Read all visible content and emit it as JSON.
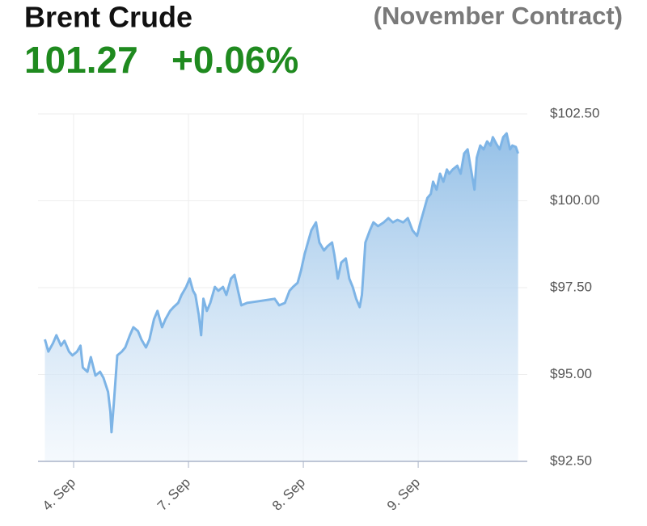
{
  "chart_data": {
    "type": "area",
    "title": "Brent Crude",
    "subtitle": "(November Contract)",
    "price": "101.27",
    "change": "+0.06%",
    "color": "#7db4e6",
    "grid": true,
    "xlim": [
      -0.31,
      3.95
    ],
    "xticks": [
      {
        "value": 0,
        "label": "4. Sep"
      },
      {
        "value": 1,
        "label": "7. Sep"
      },
      {
        "value": 2,
        "label": "8. Sep"
      },
      {
        "value": 3,
        "label": "9. Sep"
      }
    ],
    "ylim": [
      92.5,
      102.5
    ],
    "yticks": [
      {
        "value": 92.5,
        "label": "$92.50"
      },
      {
        "value": 95,
        "label": "$95.00"
      },
      {
        "value": 97.5,
        "label": "$97.50"
      },
      {
        "value": 100,
        "label": "$100.00"
      },
      {
        "value": 102.5,
        "label": "$102.50"
      }
    ],
    "x": [
      -0.25,
      -0.22,
      -0.18,
      -0.15,
      -0.11,
      -0.08,
      -0.04,
      -0.01,
      0.03,
      0.06,
      0.08,
      0.12,
      0.15,
      0.19,
      0.23,
      0.26,
      0.3,
      0.32,
      0.33,
      0.35,
      0.38,
      0.42,
      0.45,
      0.49,
      0.52,
      0.56,
      0.59,
      0.63,
      0.66,
      0.7,
      0.73,
      0.77,
      0.8,
      0.84,
      0.87,
      0.91,
      0.94,
      0.98,
      1.01,
      1.04,
      1.06,
      1.09,
      1.11,
      1.13,
      1.16,
      1.19,
      1.23,
      1.26,
      1.3,
      1.33,
      1.37,
      1.4,
      1.44,
      1.46,
      1.51,
      1.61,
      1.75,
      1.79,
      1.84,
      1.88,
      1.91,
      1.95,
      1.98,
      2.01,
      2.04,
      2.07,
      2.11,
      2.14,
      2.18,
      2.21,
      2.25,
      2.27,
      2.3,
      2.33,
      2.37,
      2.4,
      2.43,
      2.46,
      2.49,
      2.51,
      2.54,
      2.58,
      2.61,
      2.65,
      2.7,
      2.74,
      2.78,
      2.82,
      2.87,
      2.91,
      2.95,
      2.99,
      3.02,
      3.05,
      3.08,
      3.11,
      3.13,
      3.16,
      3.19,
      3.22,
      3.25,
      3.27,
      3.3,
      3.34,
      3.37,
      3.4,
      3.43,
      3.46,
      3.49,
      3.51,
      3.54,
      3.57,
      3.6,
      3.63,
      3.65,
      3.68,
      3.71,
      3.74,
      3.77,
      3.8,
      3.82,
      3.85,
      3.87
    ],
    "values": [
      96.01,
      95.66,
      95.9,
      96.13,
      95.83,
      95.97,
      95.66,
      95.55,
      95.66,
      95.83,
      95.2,
      95.08,
      95.5,
      94.97,
      95.08,
      94.9,
      94.5,
      93.92,
      93.34,
      94.15,
      95.55,
      95.66,
      95.78,
      96.13,
      96.36,
      96.25,
      96.01,
      95.78,
      96.01,
      96.59,
      96.83,
      96.36,
      96.59,
      96.83,
      96.94,
      97.06,
      97.29,
      97.52,
      97.76,
      97.41,
      97.29,
      96.71,
      96.13,
      97.18,
      96.83,
      97.06,
      97.52,
      97.41,
      97.52,
      97.29,
      97.76,
      97.87,
      97.29,
      96.99,
      97.06,
      97.11,
      97.18,
      96.99,
      97.06,
      97.41,
      97.52,
      97.64,
      97.99,
      98.45,
      98.8,
      99.15,
      99.38,
      98.8,
      98.57,
      98.69,
      98.8,
      98.45,
      97.76,
      98.22,
      98.34,
      97.76,
      97.52,
      97.18,
      96.94,
      97.29,
      98.8,
      99.15,
      99.38,
      99.27,
      99.38,
      99.5,
      99.38,
      99.45,
      99.38,
      99.5,
      99.15,
      98.99,
      99.38,
      99.73,
      100.08,
      100.2,
      100.55,
      100.32,
      100.78,
      100.55,
      100.9,
      100.78,
      100.9,
      101.01,
      100.78,
      101.36,
      101.48,
      100.9,
      100.32,
      101.24,
      101.59,
      101.48,
      101.71,
      101.59,
      101.83,
      101.64,
      101.48,
      101.83,
      101.94,
      101.48,
      101.59,
      101.55,
      101.36
    ]
  }
}
